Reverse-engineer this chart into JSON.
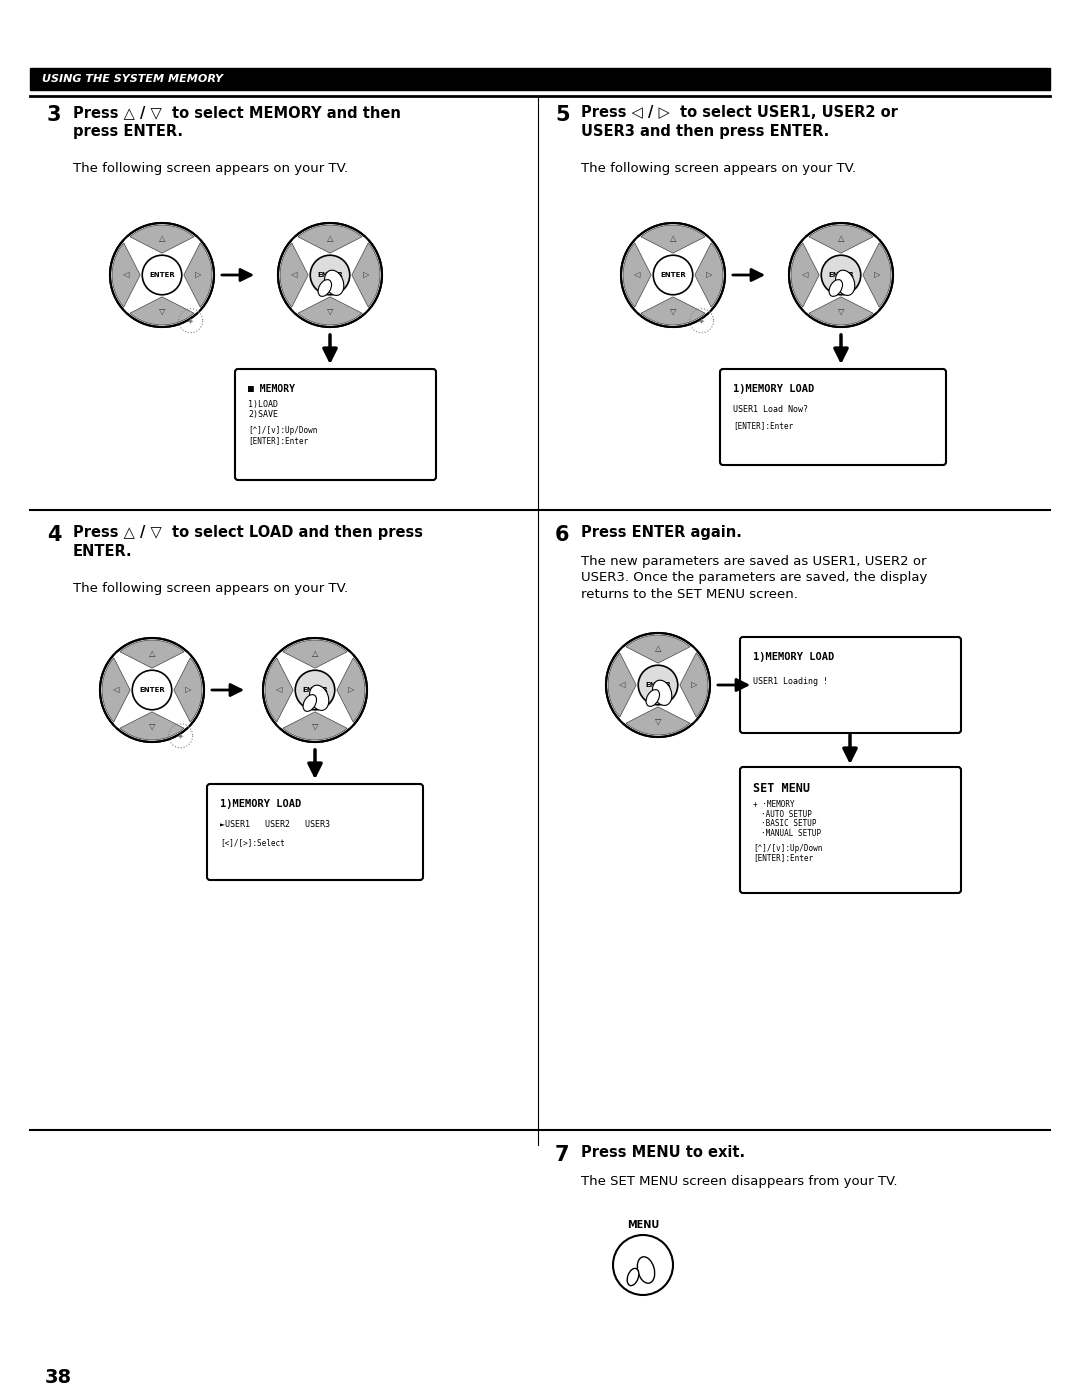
{
  "bg_color": "#ffffff",
  "header_bg": "#000000",
  "header_text": "USING THE SYSTEM MEMORY",
  "header_text_color": "#ffffff",
  "page_number": "38",
  "step3_num": "3",
  "step3_title_bold": "Press △ / ▽  to select MEMORY and then\npress ENTER.",
  "step3_body": "The following screen appears on your TV.",
  "step4_num": "4",
  "step4_title_bold": "Press △ / ▽  to select LOAD and then press\nENTER.",
  "step4_body": "The following screen appears on your TV.",
  "step5_num": "5",
  "step5_title_bold": "Press ◁ / ▷  to select USER1, USER2 or\nUSER3 and then press ENTER.",
  "step5_body": "The following screen appears on your TV.",
  "step6_num": "6",
  "step6_title_bold": "Press ENTER again.",
  "step6_body": "The new parameters are saved as USER1, USER2 or\nUSER3. Once the parameters are saved, the display\nreturns to the SET MENU screen.",
  "step7_num": "7",
  "step7_title_bold": "Press MENU to exit.",
  "step7_body": "The SET MENU screen disappears from your TV.",
  "scr_mem_title": "■ MEMORY",
  "scr_mem_line1": "1)LOAD",
  "scr_mem_line2": "2)SAVE",
  "scr_mem_line3": "[^]/[v]:Up/Down",
  "scr_mem_line4": "[ENTER]:Enter",
  "scr_memload_title": "1)MEMORY LOAD",
  "scr_memload5_line1": "USER1 Load Now?",
  "scr_memload5_line2": "[ENTER]:Enter",
  "scr_memload4_line1": "►USER1   USER2   USER3",
  "scr_memload4_line2": "[<]/[>]:Select",
  "scr_loading_title": "1)MEMORY LOAD",
  "scr_loading_line1": "USER1 Loading !",
  "scr_setmenu_title": "SET MENU",
  "scr_setmenu_line1": "+ ·MEMORY",
  "scr_setmenu_line2": "·AUTO SETUP",
  "scr_setmenu_line3": "·BASIC SETUP",
  "scr_setmenu_line4": "·MANUAL SETUP",
  "scr_setmenu_line5": "[^]/[v]:Up/Down",
  "scr_setmenu_line6": "[ENTER]:Enter"
}
